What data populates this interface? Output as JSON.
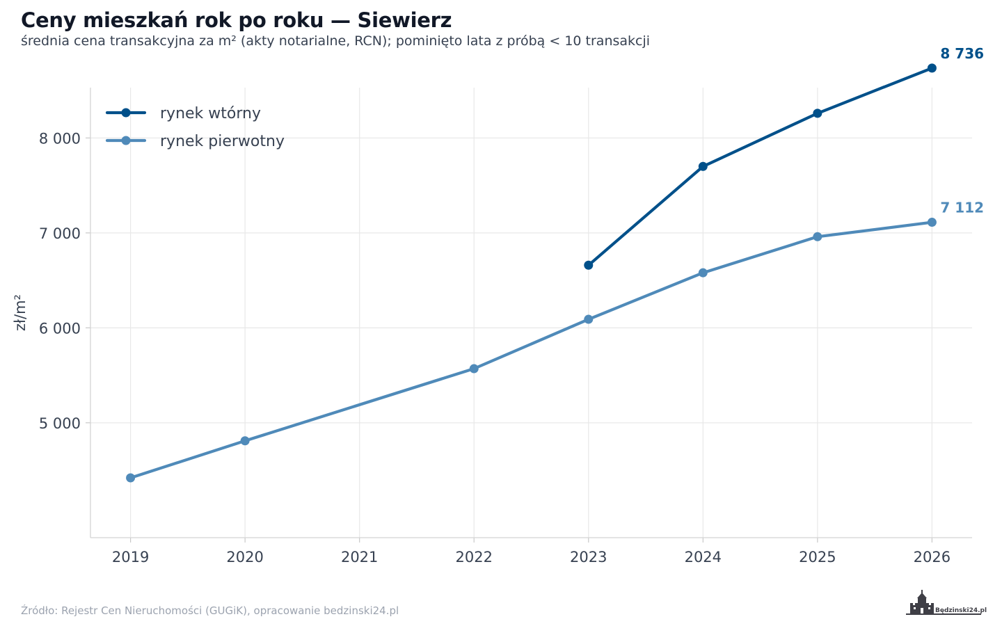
{
  "header": {
    "title": "Ceny mieszkań rok po roku — Siewierz",
    "subtitle": "średnia cena transakcyjna za m² (akty notarialne, RCN); pominięto lata z próbą < 10 transakcji"
  },
  "footer": {
    "source": "Źródło: Rejestr Cen Nieruchomości (GUGiK), opracowanie bedzinski24.pl",
    "logo_text": "Będzinski24.pl"
  },
  "chart_data": {
    "type": "line",
    "title": "Ceny mieszkań rok po roku — Siewierz",
    "subtitle": "średnia cena transakcyjna za m² (akty notarialne, RCN); pominięto lata z próbą < 10 transakcji",
    "xlabel": "",
    "ylabel": "zł/m²",
    "x": [
      2019,
      2020,
      2021,
      2022,
      2023,
      2024,
      2025,
      2026
    ],
    "xlim": [
      2018.65,
      2026.35
    ],
    "ylim": [
      3790,
      8530
    ],
    "y_ticks": [
      5000,
      6000,
      7000,
      8000
    ],
    "y_tick_labels": [
      "5 000",
      "6 000",
      "7 000",
      "8 000"
    ],
    "x_tick_labels": [
      "2019",
      "2020",
      "2021",
      "2022",
      "2023",
      "2024",
      "2025",
      "2026"
    ],
    "grid": true,
    "legend_position": "top-left",
    "series": [
      {
        "name": "rynek wtórny",
        "color": "#00508a",
        "x": [
          2023,
          2024,
          2025,
          2026
        ],
        "values": [
          6660,
          7700,
          8260,
          8736
        ],
        "end_label": "8 736"
      },
      {
        "name": "rynek pierwotny",
        "color": "#4f8ab9",
        "x": [
          2019,
          2020,
          2022,
          2023,
          2024,
          2025,
          2026
        ],
        "values": [
          4420,
          4810,
          5570,
          6090,
          6580,
          6960,
          7112
        ],
        "end_label": "7 112"
      }
    ]
  }
}
